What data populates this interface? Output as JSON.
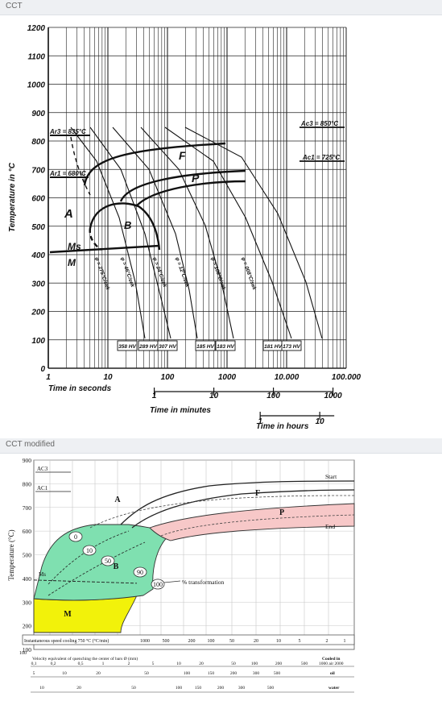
{
  "sections": [
    {
      "label": "CCT"
    },
    {
      "label": "CCT modified"
    }
  ],
  "chart_data": [
    {
      "type": "line",
      "ylabel": "Temperature in °C",
      "ylim": [
        0,
        1200
      ],
      "yticks": [
        "0",
        "100",
        "200",
        "300",
        "400",
        "500",
        "600",
        "700",
        "800",
        "900",
        "1000",
        "1100",
        "1200"
      ],
      "x_axes": [
        {
          "label": "Time in seconds",
          "ticks": [
            "1",
            "10",
            "100",
            "1000",
            "10.000",
            "100.000"
          ]
        },
        {
          "label": "Time in minutes",
          "ticks": [
            "1",
            "10",
            "100",
            "1000"
          ]
        },
        {
          "label": "Time in hours",
          "ticks": [
            "1",
            "10"
          ]
        }
      ],
      "phase_labels": [
        "A",
        "B",
        "F",
        "P",
        "Ms",
        "M"
      ],
      "annotations": [
        "Ac3 = 850°C",
        "Ac1 = 725°C",
        "Ar3 = 835°C",
        "Ar1 = 680°C"
      ],
      "hardness": [
        "358 HV",
        "289 HV",
        "307 HV",
        "185 HV",
        "183 HV",
        "181 HV",
        "173 HV"
      ],
      "curve_labels": [
        "φ = 275°C/sek",
        "φ = 46°C/sek",
        "φ = 24°C/sek",
        "φ = 12°C/sek",
        "φ = 108°C/sek",
        "φ = 008°C/sek"
      ]
    },
    {
      "type": "area",
      "ylabel": "Temperature (°C)",
      "ylim": [
        100,
        900
      ],
      "yticks": [
        "100",
        "200",
        "300",
        "400",
        "500",
        "600",
        "700",
        "800",
        "900"
      ],
      "annotations": [
        "AC3",
        "AC1",
        "Ms",
        "Start",
        "End",
        "% transformation"
      ],
      "regions": [
        {
          "name": "A",
          "color": "#ffffff"
        },
        {
          "name": "F",
          "color": "#ffffff"
        },
        {
          "name": "P",
          "color": "#f7c8c8"
        },
        {
          "name": "B",
          "color": "#7fe0b0"
        },
        {
          "name": "M",
          "color": "#f2f20a"
        }
      ],
      "transformation_marks": [
        "0",
        "10",
        "50",
        "90",
        "100"
      ],
      "scale_rows": [
        {
          "label": "Instantaneous speed cooling 750 °C (°C/min)",
          "ticks": [
            "1000",
            "500",
            "200",
            "100",
            "50",
            "20",
            "10",
            "5",
            "2",
            "1"
          ]
        },
        {
          "label": "Velocity equivalent of quenching the center of bars Ø (mm)",
          "right_label": "Cooled in",
          "sub_right": "1000 air 2000",
          "ticks": [
            "0,1",
            "0,2",
            "0,5",
            "1",
            "2",
            "5",
            "10",
            "20",
            "50",
            "100",
            "200",
            "500"
          ]
        },
        {
          "label": "",
          "right_label": "oil",
          "ticks": [
            "5",
            "10",
            "20",
            "50",
            "100",
            "150",
            "200",
            "300",
            "500"
          ]
        },
        {
          "label": "",
          "right_label": "water",
          "ticks": [
            "10",
            "20",
            "50",
            "100",
            "150",
            "200",
            "300",
            "500"
          ]
        }
      ]
    }
  ]
}
